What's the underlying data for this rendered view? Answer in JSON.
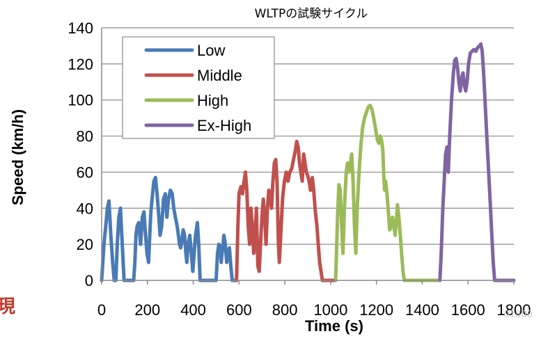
{
  "chart_data": {
    "type": "line",
    "title": "WLTPの試験サイクル",
    "xlabel": "Time (s)",
    "ylabel": "Speed (km/h)",
    "xlim": [
      0,
      1800
    ],
    "ylim": [
      0,
      140
    ],
    "xticks": [
      0,
      200,
      400,
      600,
      800,
      1000,
      1200,
      1400,
      1600,
      1800
    ],
    "yticks": [
      0,
      20,
      40,
      60,
      80,
      100,
      120,
      140
    ],
    "grid": "horizontal",
    "legend": "top-left",
    "series": [
      {
        "name": "Low",
        "color": "#4a7ab5",
        "points": [
          [
            0,
            0
          ],
          [
            10,
            20
          ],
          [
            18,
            30
          ],
          [
            25,
            40
          ],
          [
            32,
            44
          ],
          [
            40,
            25
          ],
          [
            48,
            10
          ],
          [
            55,
            0
          ],
          [
            62,
            0
          ],
          [
            68,
            20
          ],
          [
            75,
            35
          ],
          [
            82,
            40
          ],
          [
            90,
            20
          ],
          [
            98,
            0
          ],
          [
            110,
            0
          ],
          [
            125,
            0
          ],
          [
            140,
            0
          ],
          [
            145,
            10
          ],
          [
            150,
            25
          ],
          [
            155,
            30
          ],
          [
            162,
            32
          ],
          [
            170,
            20
          ],
          [
            178,
            35
          ],
          [
            185,
            38
          ],
          [
            190,
            28
          ],
          [
            198,
            15
          ],
          [
            205,
            10
          ],
          [
            210,
            25
          ],
          [
            215,
            38
          ],
          [
            220,
            45
          ],
          [
            228,
            55
          ],
          [
            235,
            57
          ],
          [
            242,
            48
          ],
          [
            250,
            35
          ],
          [
            255,
            25
          ],
          [
            262,
            30
          ],
          [
            270,
            45
          ],
          [
            278,
            48
          ],
          [
            285,
            35
          ],
          [
            292,
            45
          ],
          [
            300,
            50
          ],
          [
            308,
            48
          ],
          [
            315,
            40
          ],
          [
            322,
            35
          ],
          [
            330,
            30
          ],
          [
            335,
            25
          ],
          [
            340,
            20
          ],
          [
            345,
            18
          ],
          [
            350,
            22
          ],
          [
            356,
            28
          ],
          [
            362,
            25
          ],
          [
            368,
            15
          ],
          [
            372,
            10
          ],
          [
            378,
            20
          ],
          [
            385,
            25
          ],
          [
            392,
            15
          ],
          [
            398,
            5
          ],
          [
            404,
            15
          ],
          [
            410,
            25
          ],
          [
            418,
            32
          ],
          [
            424,
            20
          ],
          [
            430,
            0
          ],
          [
            445,
            0
          ],
          [
            465,
            0
          ],
          [
            485,
            0
          ],
          [
            500,
            0
          ],
          [
            506,
            15
          ],
          [
            512,
            20
          ],
          [
            518,
            18
          ],
          [
            522,
            10
          ],
          [
            528,
            18
          ],
          [
            534,
            25
          ],
          [
            540,
            20
          ],
          [
            546,
            10
          ],
          [
            552,
            15
          ],
          [
            558,
            18
          ],
          [
            564,
            8
          ],
          [
            570,
            0
          ],
          [
            589,
            0
          ]
        ]
      },
      {
        "name": "Middle",
        "color": "#c0504d",
        "points": [
          [
            589,
            0
          ],
          [
            595,
            30
          ],
          [
            600,
            48
          ],
          [
            608,
            52
          ],
          [
            615,
            48
          ],
          [
            622,
            55
          ],
          [
            628,
            60
          ],
          [
            634,
            50
          ],
          [
            640,
            30
          ],
          [
            646,
            20
          ],
          [
            652,
            40
          ],
          [
            658,
            30
          ],
          [
            664,
            15
          ],
          [
            670,
            25
          ],
          [
            676,
            40
          ],
          [
            682,
            8
          ],
          [
            688,
            5
          ],
          [
            694,
            20
          ],
          [
            700,
            35
          ],
          [
            706,
            45
          ],
          [
            712,
            35
          ],
          [
            718,
            20
          ],
          [
            724,
            40
          ],
          [
            730,
            50
          ],
          [
            736,
            48
          ],
          [
            742,
            40
          ],
          [
            748,
            55
          ],
          [
            754,
            65
          ],
          [
            760,
            67
          ],
          [
            766,
            55
          ],
          [
            772,
            20
          ],
          [
            776,
            10
          ],
          [
            782,
            25
          ],
          [
            790,
            45
          ],
          [
            798,
            55
          ],
          [
            806,
            60
          ],
          [
            814,
            55
          ],
          [
            822,
            60
          ],
          [
            830,
            62
          ],
          [
            838,
            67
          ],
          [
            846,
            72
          ],
          [
            852,
            77
          ],
          [
            858,
            74
          ],
          [
            864,
            65
          ],
          [
            870,
            60
          ],
          [
            876,
            55
          ],
          [
            882,
            70
          ],
          [
            888,
            65
          ],
          [
            894,
            60
          ],
          [
            900,
            58
          ],
          [
            906,
            55
          ],
          [
            912,
            50
          ],
          [
            920,
            57
          ],
          [
            926,
            50
          ],
          [
            932,
            40
          ],
          [
            940,
            30
          ],
          [
            946,
            20
          ],
          [
            952,
            10
          ],
          [
            958,
            5
          ],
          [
            964,
            0
          ],
          [
            1022,
            0
          ]
        ]
      },
      {
        "name": "High",
        "color": "#9bbb59",
        "points": [
          [
            1022,
            0
          ],
          [
            1030,
            35
          ],
          [
            1036,
            53
          ],
          [
            1042,
            50
          ],
          [
            1048,
            30
          ],
          [
            1054,
            15
          ],
          [
            1060,
            40
          ],
          [
            1068,
            60
          ],
          [
            1074,
            65
          ],
          [
            1080,
            60
          ],
          [
            1086,
            65
          ],
          [
            1092,
            70
          ],
          [
            1098,
            55
          ],
          [
            1104,
            30
          ],
          [
            1110,
            15
          ],
          [
            1116,
            40
          ],
          [
            1124,
            60
          ],
          [
            1132,
            75
          ],
          [
            1140,
            85
          ],
          [
            1148,
            90
          ],
          [
            1156,
            93
          ],
          [
            1164,
            96
          ],
          [
            1172,
            97
          ],
          [
            1180,
            95
          ],
          [
            1188,
            90
          ],
          [
            1196,
            84
          ],
          [
            1204,
            78
          ],
          [
            1210,
            76
          ],
          [
            1216,
            80
          ],
          [
            1222,
            78
          ],
          [
            1228,
            72
          ],
          [
            1232,
            58
          ],
          [
            1236,
            50
          ],
          [
            1240,
            55
          ],
          [
            1246,
            48
          ],
          [
            1252,
            38
          ],
          [
            1258,
            28
          ],
          [
            1264,
            30
          ],
          [
            1270,
            35
          ],
          [
            1276,
            30
          ],
          [
            1282,
            25
          ],
          [
            1288,
            35
          ],
          [
            1292,
            42
          ],
          [
            1298,
            35
          ],
          [
            1304,
            25
          ],
          [
            1310,
            15
          ],
          [
            1316,
            5
          ],
          [
            1322,
            0
          ],
          [
            1477,
            0
          ]
        ]
      },
      {
        "name": "Ex-High",
        "color": "#8064a2",
        "points": [
          [
            1477,
            0
          ],
          [
            1483,
            15
          ],
          [
            1490,
            40
          ],
          [
            1496,
            55
          ],
          [
            1502,
            70
          ],
          [
            1508,
            74
          ],
          [
            1514,
            60
          ],
          [
            1520,
            80
          ],
          [
            1528,
            100
          ],
          [
            1536,
            115
          ],
          [
            1542,
            122
          ],
          [
            1548,
            123
          ],
          [
            1554,
            118
          ],
          [
            1560,
            110
          ],
          [
            1566,
            105
          ],
          [
            1572,
            112
          ],
          [
            1578,
            115
          ],
          [
            1584,
            108
          ],
          [
            1590,
            105
          ],
          [
            1596,
            110
          ],
          [
            1602,
            120
          ],
          [
            1610,
            126
          ],
          [
            1618,
            127
          ],
          [
            1626,
            128
          ],
          [
            1634,
            127
          ],
          [
            1642,
            129
          ],
          [
            1650,
            130
          ],
          [
            1656,
            131
          ],
          [
            1662,
            127
          ],
          [
            1668,
            115
          ],
          [
            1674,
            100
          ],
          [
            1680,
            85
          ],
          [
            1686,
            70
          ],
          [
            1692,
            55
          ],
          [
            1698,
            40
          ],
          [
            1704,
            25
          ],
          [
            1710,
            10
          ],
          [
            1716,
            0
          ],
          [
            1800,
            0
          ]
        ]
      }
    ]
  },
  "edge_text": "現",
  "watermark": "01800"
}
